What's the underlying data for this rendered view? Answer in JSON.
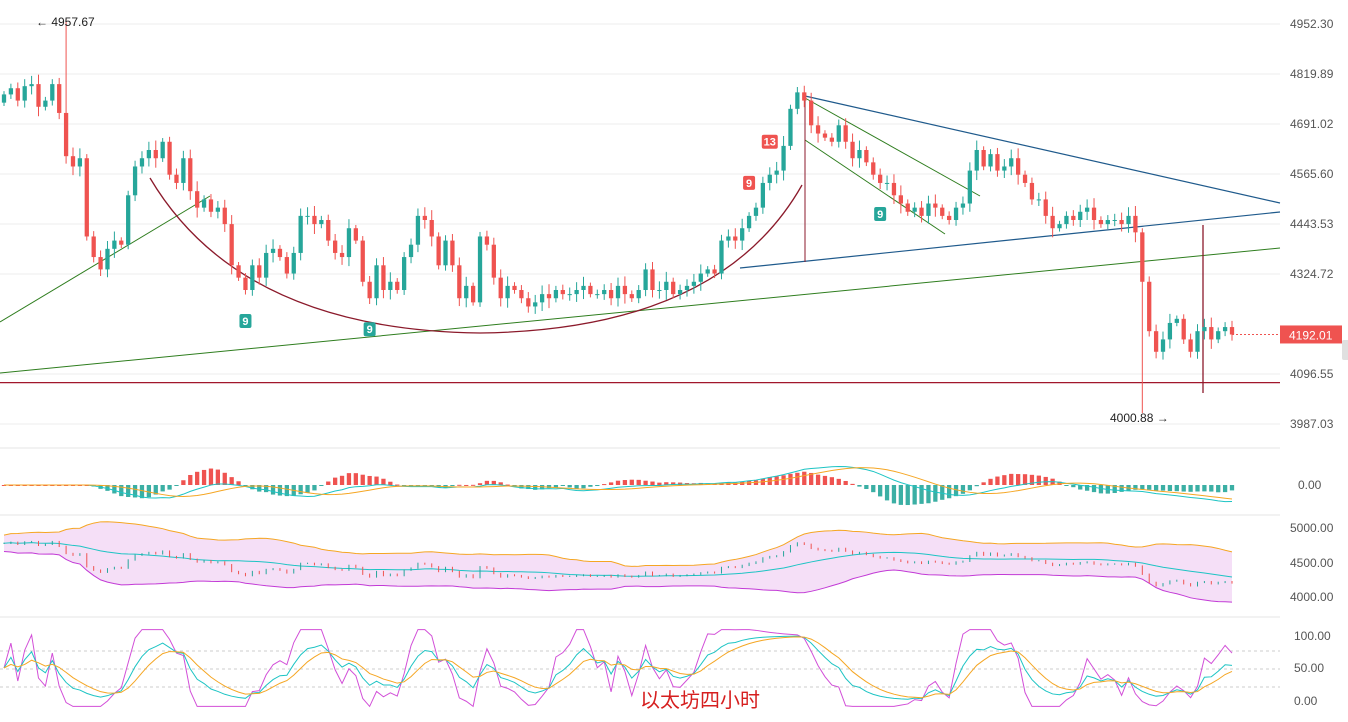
{
  "colors": {
    "up": "#26a69a",
    "down": "#ef5350",
    "current_price_bg": "#ef5350",
    "grid": "#eeeeee",
    "axis_text": "#555555",
    "support_line": "#a1172b",
    "cup_line": "#8b1a2b",
    "trend_green": "#2e7d1e",
    "triangle_blue": "#1f5a8c",
    "td_green": "#26a69a",
    "td_red": "#ef5350",
    "macd_fast": "#1dc4c4",
    "macd_slow": "#f5a623",
    "boll_fill": "#f2d7f5",
    "boll_upper": "#f5a623",
    "boll_mid": "#1dc4c4",
    "boll_lower": "#c23ad6",
    "kdj_k": "#1dc4c4",
    "kdj_d": "#f5a623",
    "kdj_j": "#d24fd8"
  },
  "main_axis": {
    "labels": [
      "4952.30",
      "4819.89",
      "4691.02",
      "4565.60",
      "4443.53",
      "4324.72",
      "4096.55",
      "3987.03"
    ],
    "current_price": "4192.01"
  },
  "annotations": {
    "high": "← 4957.67",
    "low": "4000.88 →"
  },
  "td_labels": [
    {
      "text": "9",
      "type": "green",
      "candle": 35
    },
    {
      "text": "9",
      "type": "green",
      "candle": 53
    },
    {
      "text": "9",
      "type": "red",
      "candle": 108
    },
    {
      "text": "13",
      "type": "red",
      "candle": 111
    },
    {
      "text": "9",
      "type": "green",
      "candle": 127
    }
  ],
  "macd_axis": {
    "labels": [
      "0.00"
    ]
  },
  "boll_axis": {
    "labels": [
      "5000.00",
      "4500.00",
      "4000.00"
    ]
  },
  "kdj_axis": {
    "labels": [
      "100.00",
      "50.00",
      "0.00"
    ]
  },
  "watermark": "以太坊四小时",
  "chart_data": {
    "type": "candlestick",
    "title": "",
    "price_range": [
      3960,
      4980
    ],
    "high_marker": 4957.67,
    "low_marker": 4000.88,
    "last_price": 4192.01,
    "support_level": 4075,
    "ohlc_close": [
      4775,
      4790,
      4760,
      4795,
      4800,
      4745,
      4760,
      4800,
      4730,
      4625,
      4600,
      4620,
      4430,
      4380,
      4350,
      4400,
      4420,
      4410,
      4530,
      4600,
      4620,
      4640,
      4620,
      4660,
      4580,
      4560,
      4620,
      4540,
      4500,
      4520,
      4490,
      4500,
      4460,
      4360,
      4330,
      4300,
      4360,
      4330,
      4390,
      4400,
      4380,
      4340,
      4390,
      4480,
      4480,
      4460,
      4470,
      4420,
      4390,
      4380,
      4450,
      4420,
      4320,
      4280,
      4360,
      4300,
      4320,
      4300,
      4380,
      4410,
      4480,
      4470,
      4430,
      4360,
      4420,
      4360,
      4280,
      4310,
      4270,
      4430,
      4410,
      4330,
      4280,
      4310,
      4300,
      4280,
      4260,
      4270,
      4290,
      4280,
      4300,
      4290,
      4290,
      4300,
      4310,
      4290,
      4290,
      4300,
      4280,
      4310,
      4290,
      4280,
      4300,
      4350,
      4300,
      4300,
      4320,
      4290,
      4300,
      4310,
      4320,
      4340,
      4350,
      4340,
      4420,
      4430,
      4420,
      4450,
      4480,
      4500,
      4560,
      4580,
      4590,
      4650,
      4740,
      4780,
      4760,
      4700,
      4680,
      4670,
      4660,
      4700,
      4660,
      4620,
      4640,
      4610,
      4580,
      4560,
      4560,
      4530,
      4510,
      4490,
      4500,
      4480,
      4510,
      4500,
      4480,
      4470,
      4500,
      4510,
      4590,
      4640,
      4600,
      4630,
      4590,
      4600,
      4620,
      4580,
      4560,
      4520,
      4520,
      4480,
      4450,
      4460,
      4480,
      4470,
      4490,
      4500,
      4470,
      4460,
      4470,
      4470,
      4460,
      4480,
      4440,
      4320,
      4200,
      4150,
      4180,
      4220,
      4230,
      4180,
      4150,
      4200,
      4210,
      4180,
      4200,
      4210,
      4192
    ]
  }
}
